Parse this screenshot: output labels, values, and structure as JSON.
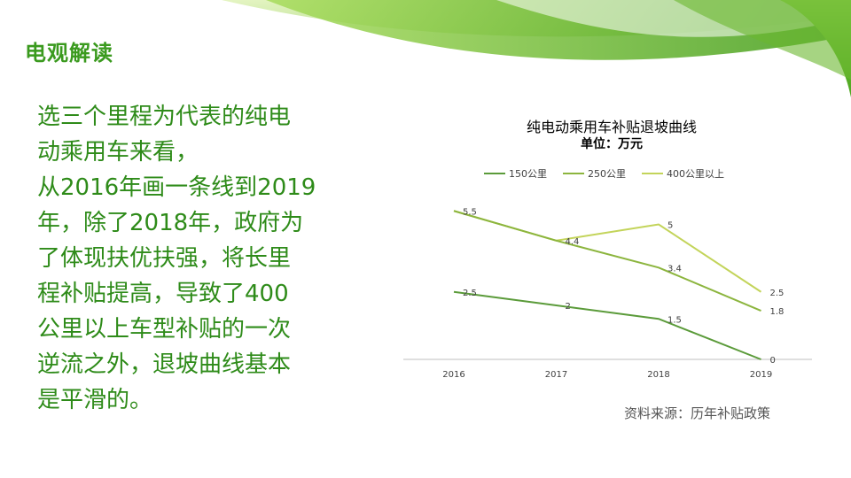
{
  "header": {
    "title": "电观解读"
  },
  "body": {
    "lines": [
      "选三个里程为代表的纯电",
      "动乘用车来看，",
      "从2016年画一条线到2019",
      "年，除了2018年，政府为",
      "了体现扶优扶强，将长里",
      "程补贴提高，导致了400",
      "公里以上车型补贴的一次",
      "逆流之外，退坡曲线基本",
      "是平滑的。"
    ]
  },
  "source": "资料来源：历年补贴政策",
  "colors": {
    "accent": "#3a9a1e",
    "text_green": "#2e8b19"
  },
  "chart_data": {
    "type": "line",
    "title": "纯电动乘用车补贴退坡曲线",
    "subtitle": "单位：万元",
    "categories": [
      "2016",
      "2017",
      "2018",
      "2019"
    ],
    "series": [
      {
        "name": "150公里",
        "values": [
          2.5,
          2,
          1.5,
          0
        ],
        "color": "#5b9b3a",
        "labels": [
          "2.5",
          "2",
          "1.5",
          "0"
        ]
      },
      {
        "name": "250公里",
        "values": [
          5.5,
          4.4,
          3.4,
          1.8
        ],
        "color": "#8cb53e",
        "labels": [
          "5.5",
          "4.4",
          "3.4",
          "1.8"
        ]
      },
      {
        "name": "400公里以上",
        "values": [
          5.5,
          4.4,
          5,
          2.5
        ],
        "color": "#c3d45a",
        "labels": [
          "",
          "",
          "5",
          "2.5"
        ]
      }
    ],
    "ylim": [
      0,
      6.5
    ],
    "grid": false,
    "legend": "top"
  }
}
